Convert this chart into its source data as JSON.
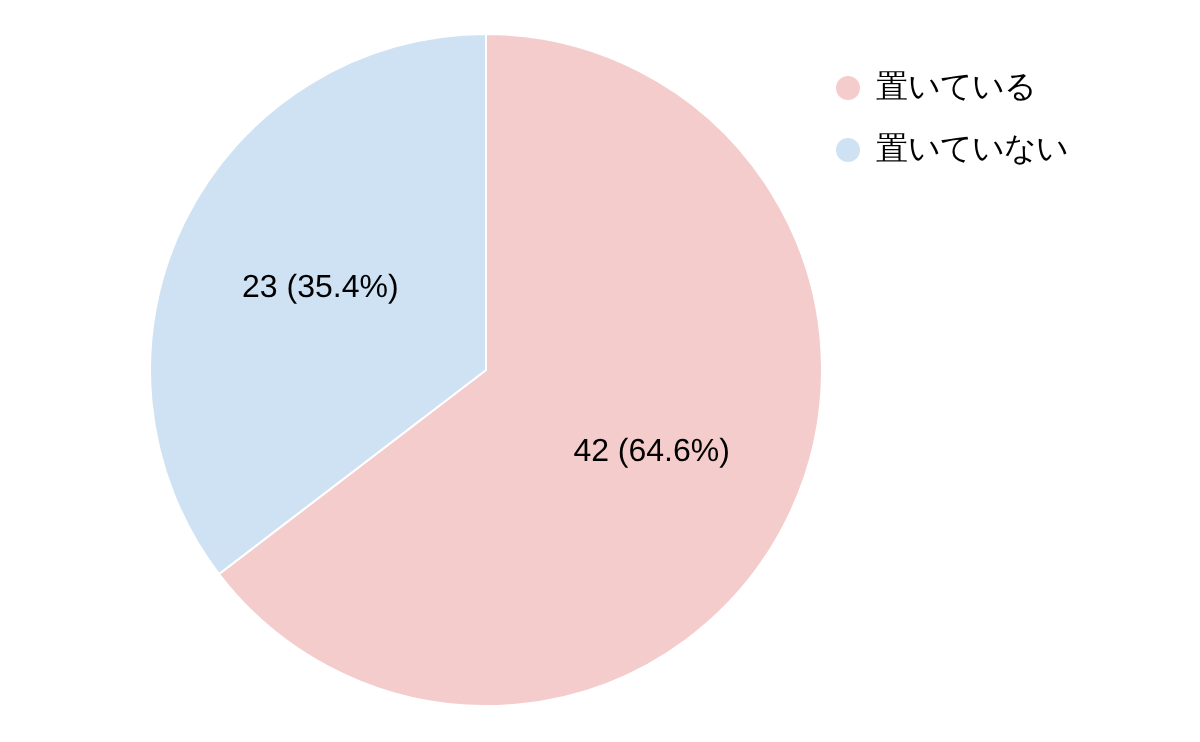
{
  "chart_data": {
    "type": "pie",
    "categories": [
      "置いている",
      "置いていない"
    ],
    "values": [
      42,
      23
    ],
    "colors": [
      "#f4cccc",
      "#cfe2f3"
    ],
    "value_labels": [
      "42 (64.6%)",
      "23 (35.4%)"
    ],
    "legend": "top right"
  }
}
